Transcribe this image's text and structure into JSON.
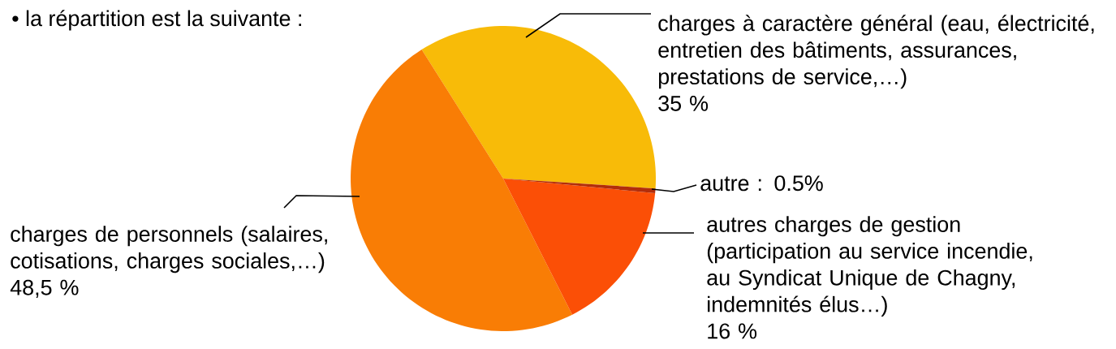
{
  "chart_data": {
    "type": "pie",
    "title": "• la répartition est la suivante :",
    "categories": [
      "charges à caractère général (eau, électricité, entretien des bâtiments, assurances, prestations de service,…)",
      "charges de personnels (salaires, cotisations, charges sociales,…)",
      "autres charges de gestion (participation au service incendie, au Syndicat Unique de Chagny, indemnités élus…)",
      null
    ],
    "values": [
      35,
      48.5,
      16,
      0.5
    ],
    "value_labels": [
      "35 %",
      "48,5 %",
      "16 %",
      "autre : 0.5%"
    ],
    "colors": [
      "#f8bb08",
      "#f97d05",
      "#fb4f06",
      "#b22d0a"
    ]
  }
}
